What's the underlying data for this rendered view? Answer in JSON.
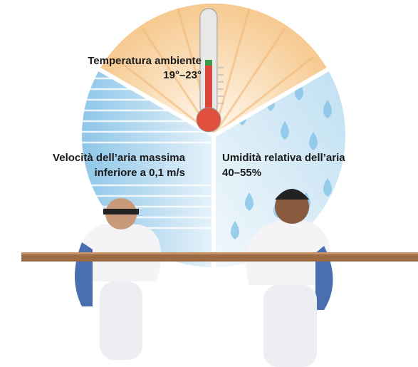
{
  "temperature": {
    "lines": [
      "Temperatura ambiente",
      "19°–23°"
    ]
  },
  "air_speed": {
    "lines": [
      "Velocità dell’aria massima",
      "inferiore a 0,1 m/s"
    ]
  },
  "humidity": {
    "lines": [
      "Umidità relativa dell’aria",
      "40–55%"
    ]
  }
}
